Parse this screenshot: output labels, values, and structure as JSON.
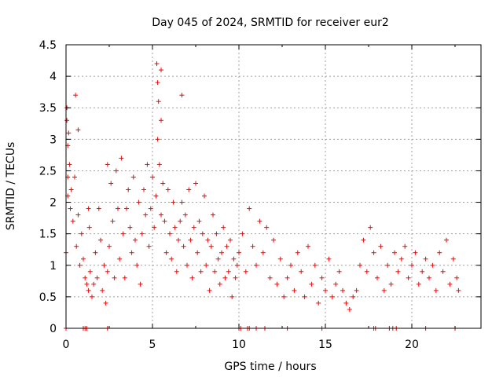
{
  "chart_data": {
    "type": "scatter",
    "title": "Day 045 of 2024, SRMTID for receiver eur2",
    "xlabel": "GPS time / hours",
    "ylabel": "SRMTID / TECUs",
    "xlim": [
      0,
      24
    ],
    "ylim": [
      0,
      4.5
    ],
    "x_ticks": [
      "0",
      "5",
      "10",
      "15",
      "20"
    ],
    "y_ticks": [
      "0",
      "0.5",
      "1",
      "1.5",
      "2",
      "2.5",
      "3",
      "3.5",
      "4",
      "4.5"
    ],
    "grid": true,
    "marker": "+",
    "series_color": "#ff0000",
    "series": [
      {
        "name": "SRMTID",
        "x": [
          0.0,
          0.05,
          0.1,
          0.15,
          0.2,
          0.25,
          0.3,
          0.4,
          0.5,
          0.6,
          0.7,
          0.8,
          0.9,
          1.0,
          1.1,
          1.2,
          1.3,
          1.4,
          1.5,
          1.6,
          1.7,
          1.8,
          1.9,
          2.0,
          2.1,
          2.2,
          2.3,
          2.4,
          2.5,
          2.6,
          2.7,
          2.8,
          2.9,
          3.0,
          3.1,
          3.2,
          3.3,
          3.4,
          3.5,
          3.6,
          3.7,
          3.8,
          3.9,
          4.0,
          4.1,
          4.2,
          4.3,
          4.4,
          4.5,
          4.6,
          4.7,
          4.8,
          4.9,
          5.0,
          5.1,
          5.2,
          5.3,
          5.4,
          5.5,
          5.6,
          5.7,
          5.8,
          5.9,
          6.0,
          6.1,
          6.2,
          6.3,
          6.4,
          6.5,
          6.6,
          6.7,
          6.8,
          6.9,
          7.0,
          7.1,
          7.2,
          7.3,
          7.4,
          7.5,
          7.6,
          7.7,
          7.8,
          7.9,
          8.0,
          8.1,
          8.2,
          8.3,
          8.4,
          8.5,
          8.6,
          8.7,
          8.8,
          8.9,
          9.0,
          9.1,
          9.2,
          9.3,
          9.4,
          9.5,
          9.6,
          9.7,
          9.8,
          9.9,
          10.0,
          10.2,
          10.4,
          10.6,
          10.8,
          11.0,
          11.2,
          11.4,
          11.6,
          11.8,
          12.0,
          12.2,
          12.4,
          12.6,
          12.8,
          13.0,
          13.2,
          13.4,
          13.6,
          13.8,
          14.0,
          14.2,
          14.4,
          14.6,
          14.8,
          15.0,
          15.2,
          15.4,
          15.6,
          15.8,
          16.0,
          16.2,
          16.4,
          16.6,
          16.8,
          17.0,
          17.2,
          17.4,
          17.6,
          17.8,
          18.0,
          18.2,
          18.4,
          18.6,
          18.8,
          19.0,
          19.2,
          19.4,
          19.6,
          19.8,
          20.0,
          20.2,
          20.4,
          20.6,
          20.8,
          21.0,
          21.2,
          21.4,
          21.6,
          21.8,
          22.0,
          22.2,
          22.4,
          22.6,
          22.7,
          0.05,
          0.1,
          0.55,
          1.3,
          1.35,
          2.4,
          5.25,
          5.3,
          5.35,
          5.5,
          6.7,
          0.0,
          1.0,
          1.1,
          1.2,
          2.4,
          10.0,
          10.1,
          10.5,
          10.6,
          11.0,
          11.5,
          12.8,
          14.8,
          17.8,
          17.9,
          18.7,
          18.9,
          19.1,
          20.8,
          22.5,
          0.1,
          0.7,
          5.5
        ],
        "y": [
          1.2,
          3.5,
          2.9,
          3.1,
          2.6,
          1.9,
          2.2,
          1.7,
          2.4,
          1.3,
          1.8,
          1.0,
          1.5,
          1.1,
          0.8,
          0.7,
          0.6,
          0.9,
          0.5,
          0.7,
          1.2,
          0.8,
          1.9,
          1.4,
          0.6,
          1.0,
          0.4,
          0.9,
          1.3,
          2.3,
          1.7,
          0.8,
          2.5,
          1.9,
          1.1,
          2.7,
          1.5,
          0.8,
          1.9,
          2.2,
          1.6,
          1.2,
          2.4,
          1.4,
          1.0,
          2.0,
          0.7,
          1.5,
          2.2,
          1.8,
          2.6,
          1.3,
          1.9,
          2.4,
          1.6,
          2.1,
          3.0,
          2.6,
          1.8,
          2.3,
          1.7,
          1.2,
          2.2,
          1.5,
          1.1,
          2.0,
          1.6,
          0.9,
          1.4,
          1.7,
          2.0,
          1.3,
          1.8,
          1.0,
          2.2,
          1.4,
          0.8,
          1.6,
          2.3,
          1.2,
          1.7,
          0.9,
          1.5,
          2.1,
          1.0,
          1.4,
          0.6,
          1.3,
          1.8,
          0.9,
          1.5,
          1.1,
          0.7,
          1.2,
          1.6,
          0.8,
          1.3,
          0.9,
          1.4,
          0.5,
          1.1,
          0.8,
          1.0,
          1.2,
          1.5,
          0.9,
          1.9,
          1.3,
          1.0,
          1.7,
          1.2,
          1.6,
          0.8,
          1.4,
          0.7,
          1.1,
          0.5,
          0.8,
          1.0,
          0.6,
          1.2,
          0.9,
          0.5,
          1.3,
          0.7,
          1.0,
          0.4,
          0.8,
          0.6,
          1.1,
          0.5,
          0.7,
          0.9,
          0.6,
          0.4,
          0.3,
          0.5,
          0.6,
          1.0,
          1.4,
          0.9,
          1.6,
          1.2,
          0.8,
          1.3,
          0.6,
          1.0,
          0.7,
          1.2,
          0.9,
          1.1,
          1.3,
          0.8,
          1.0,
          1.2,
          0.7,
          0.9,
          1.1,
          0.8,
          1.0,
          0.6,
          1.2,
          0.9,
          1.4,
          0.7,
          1.1,
          0.8,
          0.6,
          3.3,
          2.4,
          3.7,
          1.9,
          1.6,
          2.6,
          4.2,
          3.9,
          3.6,
          3.3,
          3.7,
          0.0,
          0.0,
          0.0,
          0.0,
          0.0,
          0.0,
          0.0,
          0.0,
          0.0,
          0.0,
          0.0,
          0.0,
          0.0,
          0.0,
          0.0,
          0.0,
          0.0,
          0.0,
          0.0,
          0.0,
          2.1,
          3.15,
          4.1
        ]
      }
    ]
  }
}
